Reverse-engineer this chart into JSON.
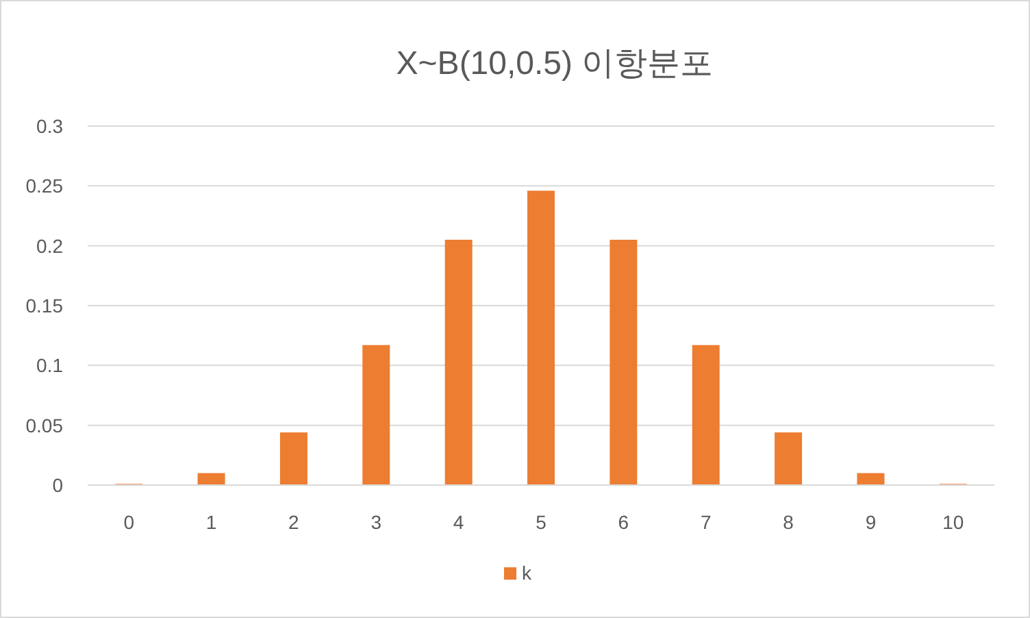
{
  "chart_data": {
    "type": "bar",
    "title": "X~B(10,0.5) 이항분포",
    "categories": [
      "0",
      "1",
      "2",
      "3",
      "4",
      "5",
      "6",
      "7",
      "8",
      "9",
      "10"
    ],
    "series": [
      {
        "name": "k",
        "color": "#ed7d31",
        "values": [
          0.001,
          0.01,
          0.044,
          0.117,
          0.205,
          0.246,
          0.205,
          0.117,
          0.044,
          0.01,
          0.001
        ]
      }
    ],
    "ylim": [
      0,
      0.3
    ],
    "yticks": [
      0,
      0.05,
      0.1,
      0.15,
      0.2,
      0.25,
      0.3
    ],
    "grid": "y",
    "legend": "bottom"
  }
}
